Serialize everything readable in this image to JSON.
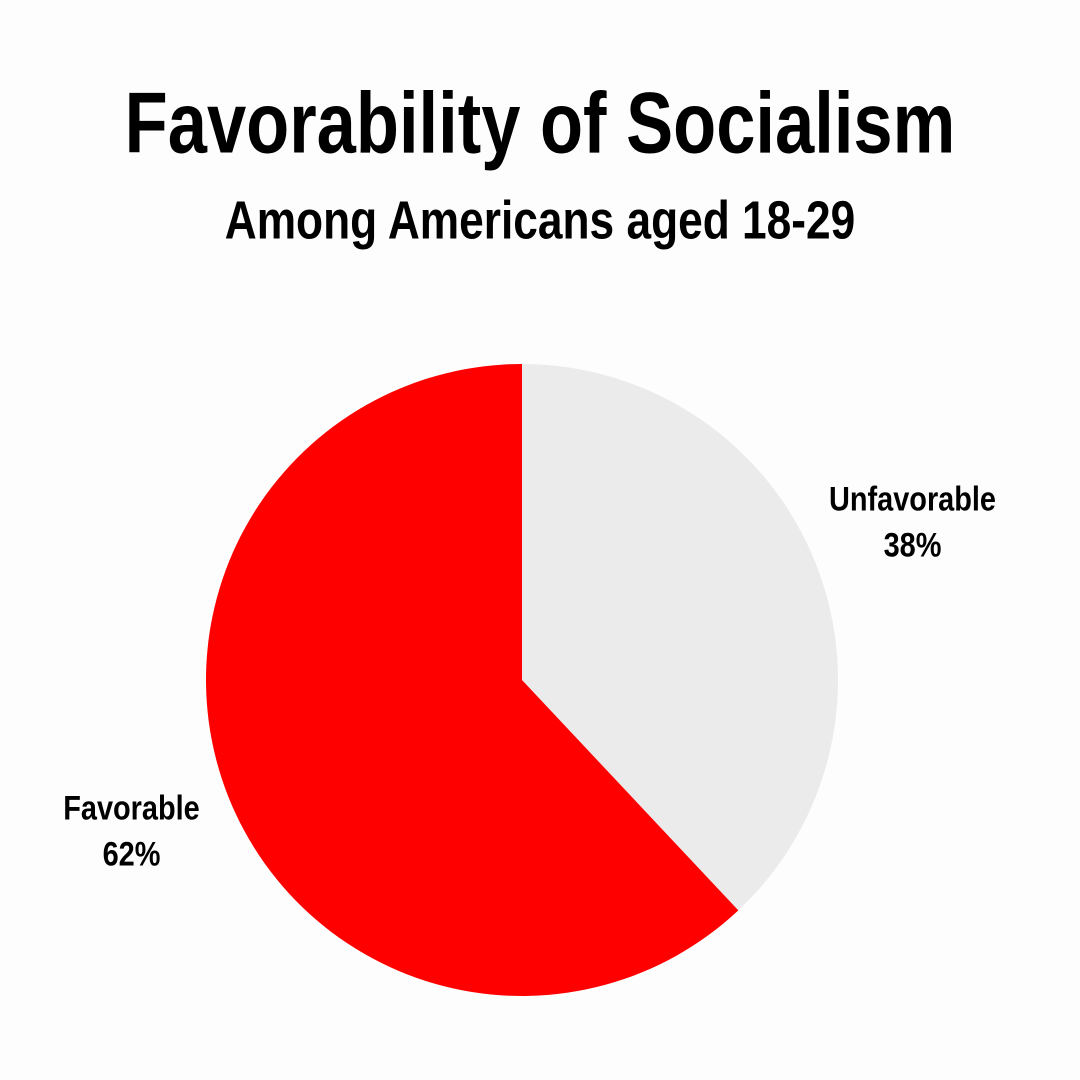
{
  "chart_data": {
    "type": "pie",
    "title": "Favorability of Socialism",
    "subtitle": "Among Americans aged 18-29",
    "categories": [
      "Unfavorable",
      "Favorable"
    ],
    "values": [
      38,
      62
    ],
    "value_labels": [
      "38%",
      "62%"
    ],
    "colors": [
      "#ebebeb",
      "#ff0000"
    ]
  }
}
